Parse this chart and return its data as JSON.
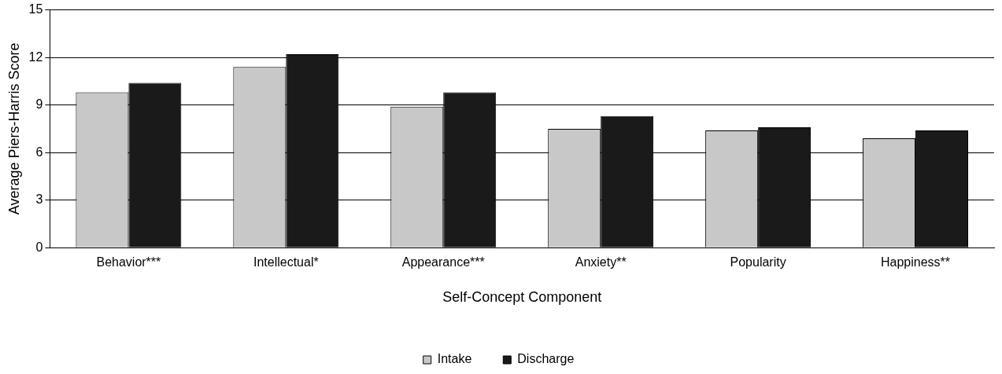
{
  "chart_data": {
    "type": "bar",
    "xlabel": "Self-Concept Component",
    "ylabel": "Average Piers-Harris Score",
    "categories": [
      "Behavior***",
      "Intellectual*",
      "Appearance***",
      "Anxiety**",
      "Popularity",
      "Happiness**"
    ],
    "series": [
      {
        "name": "Intake",
        "color": "#c8c8c8",
        "values": [
          9.8,
          11.4,
          8.9,
          7.5,
          7.4,
          6.9
        ]
      },
      {
        "name": "Discharge",
        "color": "#1a1a1a",
        "values": [
          10.4,
          12.2,
          9.8,
          8.3,
          7.6,
          7.4
        ]
      }
    ],
    "ylim": [
      0,
      15
    ],
    "yticks": [
      0,
      3,
      6,
      9,
      12,
      15
    ],
    "grid": "y",
    "legend": "bottom"
  }
}
